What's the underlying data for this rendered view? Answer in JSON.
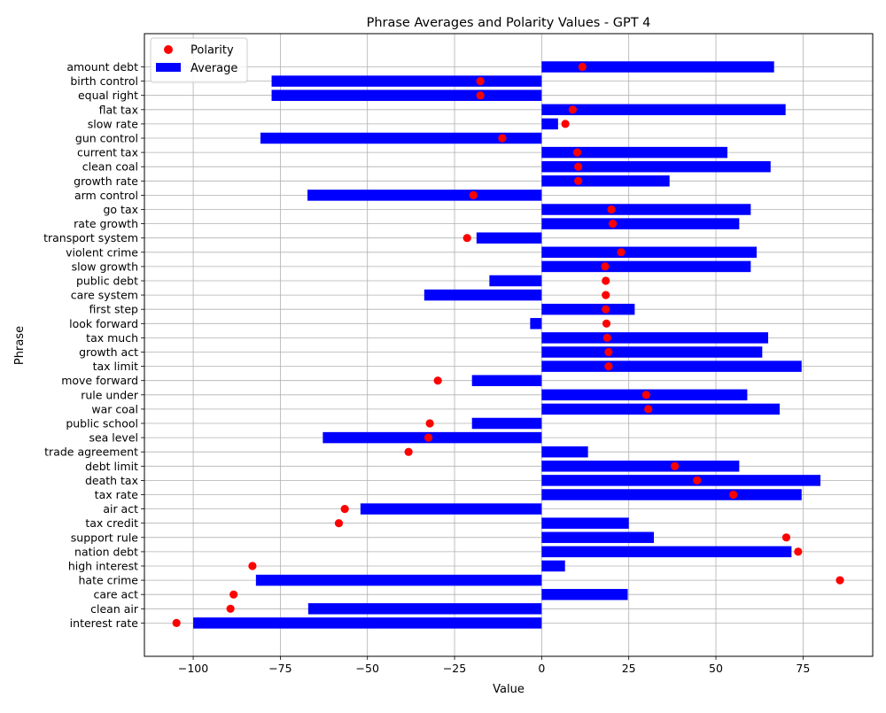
{
  "chart_data": {
    "type": "bar",
    "orientation": "horizontal",
    "title": "Phrase Averages and Polarity Values - GPT 4",
    "xlabel": "Value",
    "ylabel": "Phrase",
    "xlim": [
      -114,
      95
    ],
    "xticks": [
      -100,
      -75,
      -50,
      -25,
      0,
      25,
      50,
      75
    ],
    "xtick_labels": [
      "−100",
      "−75",
      "−50",
      "−25",
      "0",
      "25",
      "50",
      "75"
    ],
    "grid": true,
    "legend_position": "top-left",
    "colors": {
      "bar": "#0000ff",
      "point": "#ff0000",
      "grid": "#b0b0b0"
    },
    "categories": [
      "amount debt",
      "birth control",
      "equal right",
      "flat tax",
      "slow rate",
      "gun control",
      "current tax",
      "clean coal",
      "growth rate",
      "arm control",
      "go tax",
      "rate growth",
      "transport system",
      "violent crime",
      "slow growth",
      "public debt",
      "care system",
      "first step",
      "look forward",
      "tax much",
      "growth act",
      "tax limit",
      "move forward",
      "rule under",
      "war coal",
      "public school",
      "sea level",
      "trade agreement",
      "debt limit",
      "death tax",
      "tax rate",
      "air act",
      "tax credit",
      "support rule",
      "nation debt",
      "high interest",
      "hate crime",
      "care act",
      "clean air",
      "interest rate"
    ],
    "series": [
      {
        "name": "Average",
        "kind": "bar",
        "values": [
          66.7,
          -77.5,
          -77.5,
          70.0,
          4.7,
          -80.7,
          53.3,
          65.7,
          36.7,
          -67.2,
          60.0,
          56.7,
          -18.7,
          61.7,
          60.0,
          -15.0,
          -33.7,
          26.7,
          -3.3,
          65.0,
          63.3,
          74.6,
          -20.0,
          59.0,
          68.3,
          -20.0,
          -62.8,
          13.3,
          56.7,
          80.0,
          74.6,
          -52.0,
          25.0,
          32.2,
          71.7,
          6.7,
          -82.0,
          24.7,
          -67.0,
          -100.0
        ]
      },
      {
        "name": "Polarity",
        "kind": "scatter",
        "values": [
          11.7,
          -17.6,
          -17.6,
          8.9,
          6.8,
          -11.3,
          10.2,
          10.5,
          10.5,
          -19.6,
          20.0,
          20.4,
          -21.4,
          22.8,
          18.2,
          18.4,
          18.4,
          18.4,
          18.6,
          18.8,
          19.2,
          19.2,
          -29.8,
          30.0,
          30.6,
          -32.1,
          -32.5,
          -38.2,
          38.2,
          44.6,
          55.0,
          -56.5,
          -58.2,
          70.2,
          73.6,
          -83.0,
          85.6,
          -88.4,
          -89.3,
          -104.8
        ]
      }
    ]
  }
}
